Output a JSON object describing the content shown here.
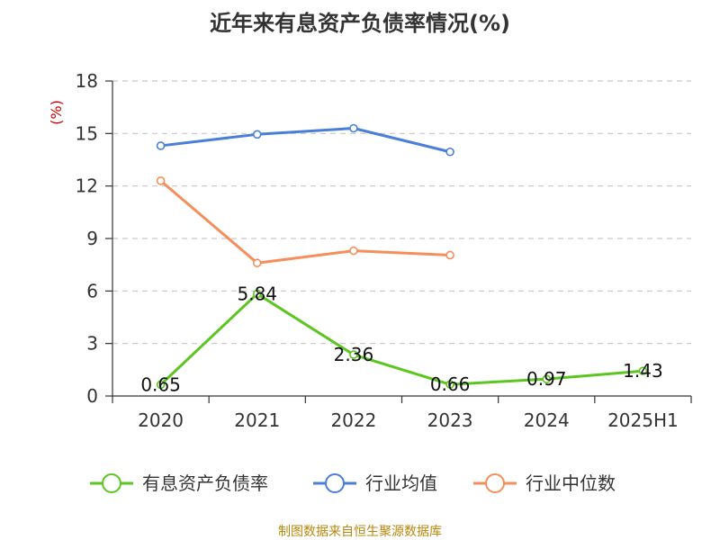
{
  "chart_data": {
    "type": "line",
    "title": "近年来有息资产负债率情况(%)",
    "ylabel": "(%)",
    "xlabel": "",
    "categories": [
      "2020",
      "2021",
      "2022",
      "2023",
      "2024",
      "2025H1"
    ],
    "ylim": [
      0,
      18
    ],
    "yticks": [
      0,
      3,
      6,
      9,
      12,
      15,
      18
    ],
    "grid": true,
    "legend_position": "bottom",
    "series": [
      {
        "name": "有息资产负债率",
        "color": "#5cc621",
        "values": [
          0.65,
          5.84,
          2.36,
          0.66,
          0.97,
          1.43
        ],
        "show_labels": true
      },
      {
        "name": "行业均值",
        "color": "#4a7fd9",
        "values": [
          14.3,
          14.95,
          15.3,
          13.95,
          null,
          null
        ],
        "show_labels": false
      },
      {
        "name": "行业中位数",
        "color": "#f58e5a",
        "values": [
          12.3,
          7.6,
          8.3,
          8.05,
          null,
          null
        ],
        "show_labels": false
      }
    ]
  },
  "source": "制图数据来自恒生聚源数据库"
}
